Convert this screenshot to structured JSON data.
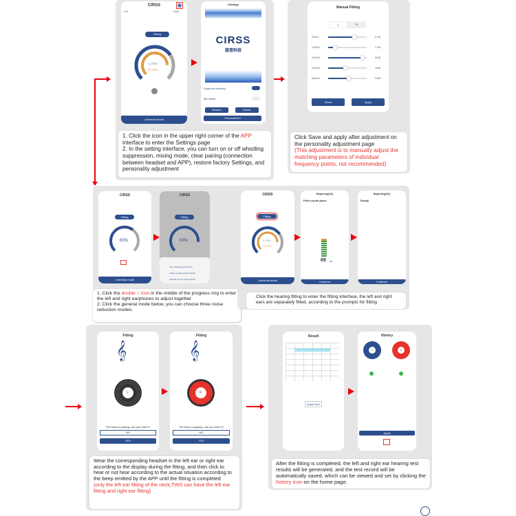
{
  "colors": {
    "accent": "#2d4f8e",
    "arrow": "#e8000b",
    "highlight": "#e8322c",
    "orange": "#e09a40",
    "gray": "#a8a8a8"
  },
  "step1": {
    "home": {
      "title": "CIRSS",
      "left": "Left",
      "right": "Right",
      "fitting": "Fitting",
      "left_pct": "L:72%",
      "right_pct": "R:72%",
      "mode": "Universal mode",
      "settings_icon": "gear-icon"
    },
    "settings": {
      "title": "Settings",
      "logo": "CIRSS",
      "logo_cn": "旋音科技",
      "suppress": "Suppress howling",
      "mix": "Mix Mode",
      "restore": "Restore",
      "delete": "Delete",
      "personalized": "Personalized"
    },
    "text": {
      "line1a": "1. Click the icon in the upper right corner of the ",
      "app": "APP",
      "line1b": " interface to enter the Settings page",
      "line2": "2. In the setting interface, you can turn on or off whistling suppression, mixing mode, clear pairing (connection between headset and APP), restore factory Settings, and personality adjustment"
    }
  },
  "step2": {
    "manual": {
      "title": "Manual Fitting",
      "tabs": [
        "L",
        "R"
      ],
      "bands": [
        {
          "freq": "500Hz",
          "value": "67dB",
          "level": 0.67
        },
        {
          "freq": "1000Hz",
          "value": "17dB",
          "level": 0.17
        },
        {
          "freq": "2000Hz",
          "value": "89dB",
          "level": 0.89
        },
        {
          "freq": "4000Hz",
          "value": "45dB",
          "level": 0.45
        },
        {
          "freq": "8000Hz",
          "value": "54dB",
          "level": 0.54
        }
      ],
      "reset": "Reset",
      "apply": "Apply"
    },
    "text": {
      "main": "Click Save and apply after adjustment on the personality adjustment page",
      "note": "(This adjustment is to manually adjust the matching parameters of individual frequency points, not recommended)"
    }
  },
  "step3": {
    "home": {
      "title": "CIRSS",
      "pct": "63%",
      "fitting": "Fitting",
      "mode": "Universal mode"
    },
    "menu": {
      "items": [
        "The relatively quiet scene",
        "Listen to noisy environments",
        "Speech in very noisy scenes"
      ]
    },
    "text": {
      "l1a": "1. Click the ",
      "double": "double",
      "icon": "icon",
      "l1b": " in the middle of the progress ring to enter the left and right earphones to adjust together",
      "l2": "2. Click the general mode below, you can choose three noise reduction modes."
    }
  },
  "step4": {
    "home": {
      "title": "CIRSS",
      "fitting": "Fitting",
      "left_pct": "L:72%",
      "right_pct": "R:72%",
      "mode": "Universal mode"
    },
    "quiet": {
      "title": "Beginning(1/2)",
      "heading": "Find a quiet place",
      "db": "69",
      "unit": "dB",
      "continue": "Continue"
    },
    "ready": {
      "title": "Beginning(2/2)",
      "heading": "Ready",
      "continue": "Continue"
    },
    "text": "Click the hearing fitting to enter the fitting interface, the left and right ears are separately fitted, according to the prompts for fitting"
  },
  "step5": {
    "fit": {
      "title": "Fitting",
      "left": "L",
      "right": "R",
      "question": "The beep is playing, can you hear it?",
      "no": "NO",
      "yes": "YES"
    },
    "text": {
      "main": "Wear the corresponding headset in the left ear or right ear according to the display during the fitting, and then click to hear or not hear according to the actual situation according to the beep emitted by the APP until the fitting is completed",
      "note": "(only the left ear fitting of the neck,TWS can have the left ear fitting and right ear fitting)"
    }
  },
  "step6": {
    "result": {
      "title": "Result",
      "apply_now": "Apply Now"
    },
    "history": {
      "title": "History",
      "left": "L",
      "right": "R",
      "apply": "Apply"
    },
    "text": {
      "a": "After the fitting is completed, the left and right ear hearing test results will be generated, and the test record will be automatically saved, which can be viewed and set by clicking the ",
      "link": "history icon",
      "b": " on the home page."
    }
  }
}
